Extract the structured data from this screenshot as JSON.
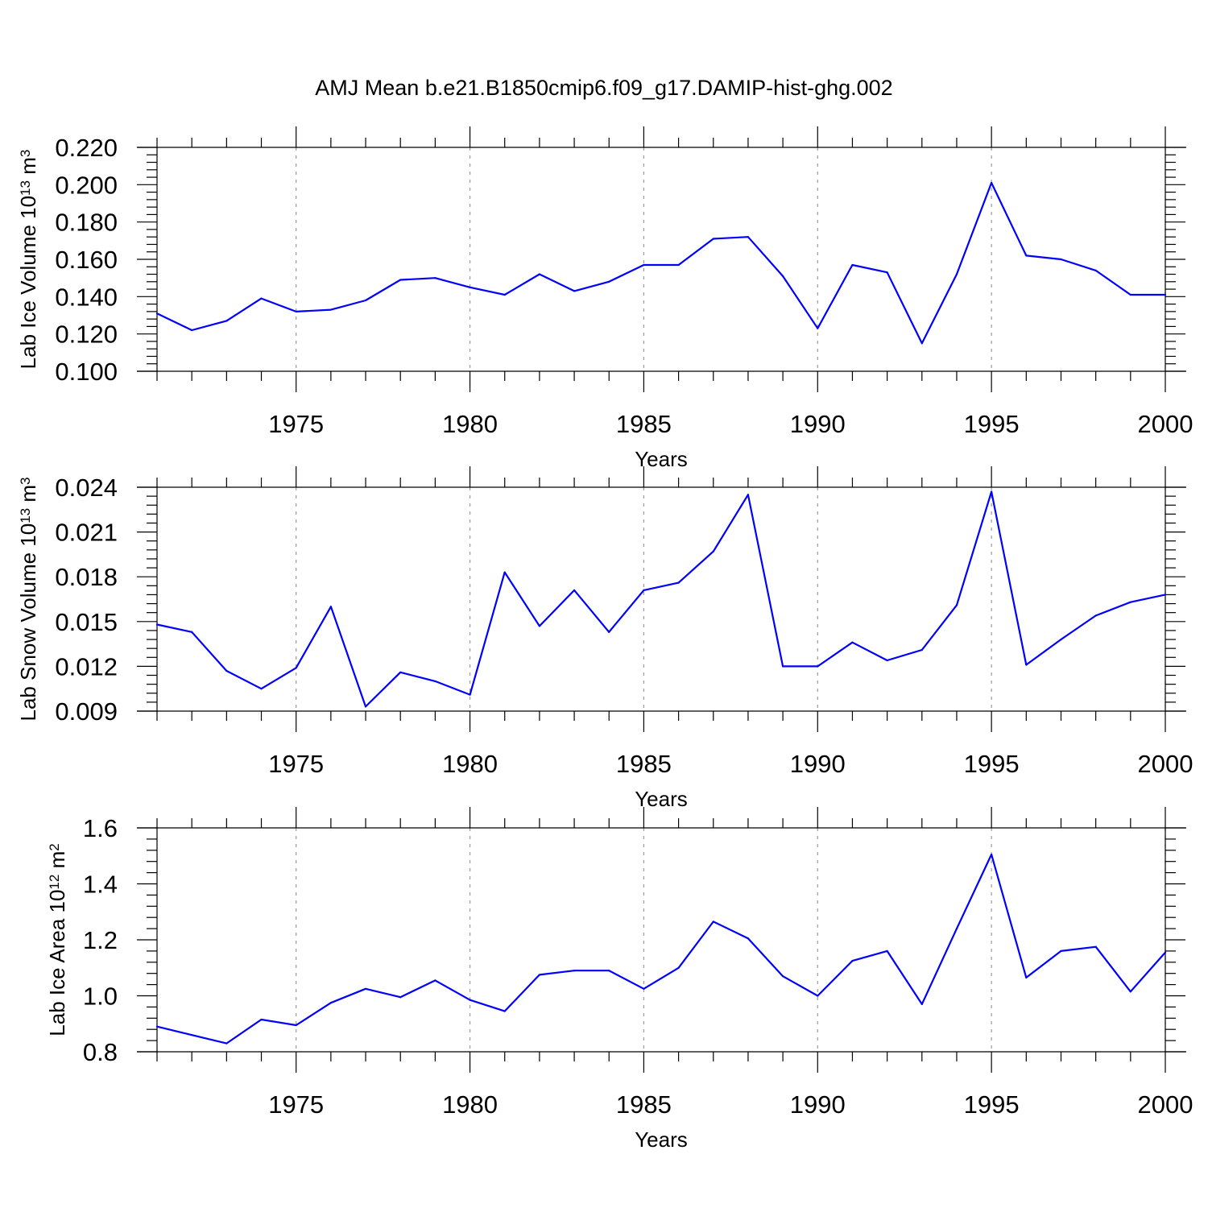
{
  "title": "AMJ Mean b.e21.B1850cmip6.f09_g17.DAMIP-hist-ghg.002",
  "colors": {
    "series": "#0000ff",
    "grid": "#9a9a9a",
    "axis": "#000000"
  },
  "chart_data": [
    {
      "type": "line",
      "ylabel_main": "Lab Ice Volume 10",
      "ylabel_exp": "13",
      "ylabel_unit": " m",
      "ylabel_unit_exp": "3",
      "xlabel": "Years",
      "xlim": [
        1971,
        2000
      ],
      "ylim": [
        0.1,
        0.22
      ],
      "yticks": [
        0.1,
        0.12,
        0.14,
        0.16,
        0.18,
        0.2,
        0.22
      ],
      "ytick_labels": [
        "0.100",
        "0.120",
        "0.140",
        "0.160",
        "0.180",
        "0.200",
        "0.220"
      ],
      "xticks": [
        1975,
        1980,
        1985,
        1990,
        1995,
        2000
      ],
      "xtick_labels": [
        "1975",
        "1980",
        "1985",
        "1990",
        "1995",
        "2000"
      ],
      "grid": "dashed vertical at major x ticks",
      "x": [
        1971,
        1972,
        1973,
        1974,
        1975,
        1976,
        1977,
        1978,
        1979,
        1980,
        1981,
        1982,
        1983,
        1984,
        1985,
        1986,
        1987,
        1988,
        1989,
        1990,
        1991,
        1992,
        1993,
        1994,
        1995,
        1996,
        1997,
        1998,
        1999,
        2000
      ],
      "values": [
        0.131,
        0.122,
        0.127,
        0.139,
        0.132,
        0.133,
        0.138,
        0.149,
        0.15,
        0.145,
        0.141,
        0.152,
        0.143,
        0.148,
        0.157,
        0.157,
        0.171,
        0.172,
        0.151,
        0.123,
        0.157,
        0.153,
        0.115,
        0.152,
        0.201,
        0.162,
        0.16,
        0.154,
        0.141,
        0.141
      ]
    },
    {
      "type": "line",
      "ylabel_main": "Lab Snow Volume 10",
      "ylabel_exp": "13",
      "ylabel_unit": " m",
      "ylabel_unit_exp": "3",
      "xlabel": "Years",
      "xlim": [
        1971,
        2000
      ],
      "ylim": [
        0.009,
        0.024
      ],
      "yticks": [
        0.009,
        0.012,
        0.015,
        0.018,
        0.021,
        0.024
      ],
      "ytick_labels": [
        "0.009",
        "0.012",
        "0.015",
        "0.018",
        "0.021",
        "0.024"
      ],
      "xticks": [
        1975,
        1980,
        1985,
        1990,
        1995,
        2000
      ],
      "xtick_labels": [
        "1975",
        "1980",
        "1985",
        "1990",
        "1995",
        "2000"
      ],
      "grid": "dashed vertical at major x ticks",
      "x": [
        1971,
        1972,
        1973,
        1974,
        1975,
        1976,
        1977,
        1978,
        1979,
        1980,
        1981,
        1982,
        1983,
        1984,
        1985,
        1986,
        1987,
        1988,
        1989,
        1990,
        1991,
        1992,
        1993,
        1994,
        1995,
        1996,
        1997,
        1998,
        1999,
        2000
      ],
      "values": [
        0.0148,
        0.0143,
        0.0117,
        0.0105,
        0.0119,
        0.016,
        0.0093,
        0.0116,
        0.011,
        0.0101,
        0.0183,
        0.0147,
        0.0171,
        0.0143,
        0.0171,
        0.0176,
        0.0197,
        0.0235,
        0.012,
        0.012,
        0.0136,
        0.0124,
        0.0131,
        0.0161,
        0.0237,
        0.0121,
        0.0138,
        0.0154,
        0.0163,
        0.0168
      ]
    },
    {
      "type": "line",
      "ylabel_main": "Lab Ice Area 10",
      "ylabel_exp": "12",
      "ylabel_unit": " m",
      "ylabel_unit_exp": "2",
      "xlabel": "Years",
      "xlim": [
        1971,
        2000
      ],
      "ylim": [
        0.8,
        1.6
      ],
      "yticks": [
        0.8,
        1.0,
        1.2,
        1.4,
        1.6
      ],
      "ytick_labels": [
        "0.8",
        "1.0",
        "1.2",
        "1.4",
        "1.6"
      ],
      "xticks": [
        1975,
        1980,
        1985,
        1990,
        1995,
        2000
      ],
      "xtick_labels": [
        "1975",
        "1980",
        "1985",
        "1990",
        "1995",
        "2000"
      ],
      "grid": "dashed vertical at major x ticks",
      "x": [
        1971,
        1972,
        1973,
        1974,
        1975,
        1976,
        1977,
        1978,
        1979,
        1980,
        1981,
        1982,
        1983,
        1984,
        1985,
        1986,
        1987,
        1988,
        1989,
        1990,
        1991,
        1992,
        1993,
        1994,
        1995,
        1996,
        1997,
        1998,
        1999,
        2000
      ],
      "values": [
        0.89,
        0.86,
        0.83,
        0.915,
        0.895,
        0.975,
        1.025,
        0.995,
        1.055,
        0.985,
        0.945,
        1.075,
        1.09,
        1.09,
        1.025,
        1.1,
        1.265,
        1.205,
        1.07,
        1.0,
        1.125,
        1.16,
        0.97,
        1.24,
        1.505,
        1.065,
        1.16,
        1.175,
        1.015,
        1.155
      ]
    }
  ]
}
